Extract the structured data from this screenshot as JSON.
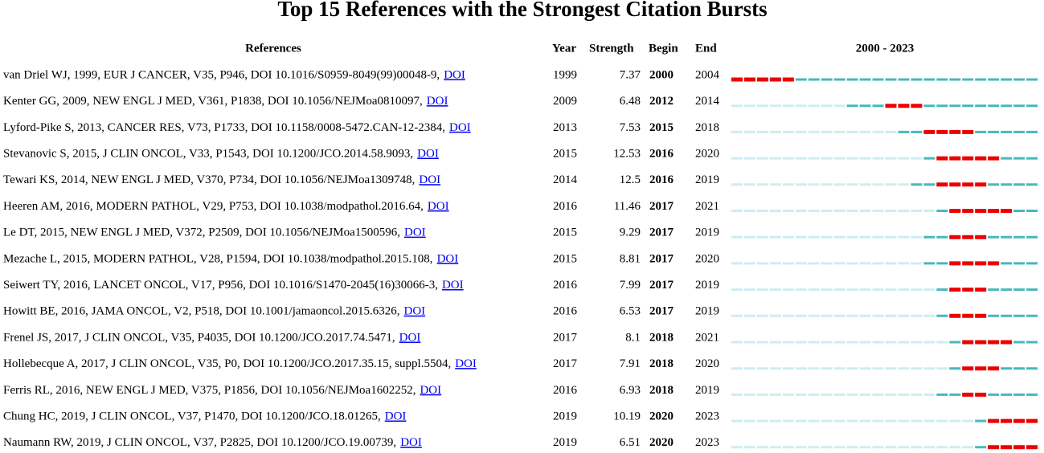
{
  "title": "Top 15 References with the Strongest Citation Bursts",
  "columns": [
    "References",
    "Year",
    "Strength",
    "Begin",
    "End"
  ],
  "timeline": {
    "label": "2000 - 2023",
    "range": [
      2000,
      2023
    ]
  },
  "rows": [
    {
      "reference": "van Driel WJ, 1999, EUR J CANCER, V35, P946, DOI 10.1016/S0959-8049(99)00048-9,",
      "link": "DOI",
      "year": 1999,
      "strength": 7.37,
      "begin": 2000,
      "end": 2004
    },
    {
      "reference": "Kenter GG, 2009, NEW ENGL J MED, V361, P1838, DOI 10.1056/NEJMoa0810097,",
      "link": "DOI",
      "year": 2009,
      "strength": 6.48,
      "begin": 2012,
      "end": 2014
    },
    {
      "reference": "Lyford-Pike S, 2013, CANCER RES, V73, P1733, DOI 10.1158/0008-5472.CAN-12-2384,",
      "link": "DOI",
      "year": 2013,
      "strength": 7.53,
      "begin": 2015,
      "end": 2018
    },
    {
      "reference": "Stevanovic S, 2015, J CLIN ONCOL, V33, P1543, DOI 10.1200/JCO.2014.58.9093,",
      "link": "DOI",
      "year": 2015,
      "strength": 12.53,
      "begin": 2016,
      "end": 2020
    },
    {
      "reference": "Tewari KS, 2014, NEW ENGL J MED, V370, P734, DOI 10.1056/NEJMoa1309748,",
      "link": "DOI",
      "year": 2014,
      "strength": 12.5,
      "begin": 2016,
      "end": 2019
    },
    {
      "reference": "Heeren AM, 2016, MODERN PATHOL, V29, P753, DOI 10.1038/modpathol.2016.64,",
      "link": "DOI",
      "year": 2016,
      "strength": 11.46,
      "begin": 2017,
      "end": 2021
    },
    {
      "reference": "Le DT, 2015, NEW ENGL J MED, V372, P2509, DOI 10.1056/NEJMoa1500596,",
      "link": "DOI",
      "year": 2015,
      "strength": 9.29,
      "begin": 2017,
      "end": 2019
    },
    {
      "reference": "Mezache L, 2015, MODERN PATHOL, V28, P1594, DOI 10.1038/modpathol.2015.108,",
      "link": "DOI",
      "year": 2015,
      "strength": 8.81,
      "begin": 2017,
      "end": 2020
    },
    {
      "reference": "Seiwert TY, 2016, LANCET ONCOL, V17, P956, DOI 10.1016/S1470-2045(16)30066-3,",
      "link": "DOI",
      "year": 2016,
      "strength": 7.99,
      "begin": 2017,
      "end": 2019
    },
    {
      "reference": "Howitt BE, 2016, JAMA ONCOL, V2, P518, DOI 10.1001/jamaoncol.2015.6326,",
      "link": "DOI",
      "year": 2016,
      "strength": 6.53,
      "begin": 2017,
      "end": 2019
    },
    {
      "reference": "Frenel JS, 2017, J CLIN ONCOL, V35, P4035, DOI 10.1200/JCO.2017.74.5471,",
      "link": "DOI",
      "year": 2017,
      "strength": 8.1,
      "begin": 2018,
      "end": 2021
    },
    {
      "reference": "Hollebecque A, 2017, J CLIN ONCOL, V35, P0, DOI 10.1200/JCO.2017.35.15, suppl.5504,",
      "link": "DOI",
      "year": 2017,
      "strength": 7.91,
      "begin": 2018,
      "end": 2020
    },
    {
      "reference": "Ferris RL, 2016, NEW ENGL J MED, V375, P1856, DOI 10.1056/NEJMoa1602252,",
      "link": "DOI",
      "year": 2016,
      "strength": 6.93,
      "begin": 2018,
      "end": 2019
    },
    {
      "reference": "Chung HC, 2019, J CLIN ONCOL, V37, P1470, DOI 10.1200/JCO.18.01265,",
      "link": "DOI",
      "year": 2019,
      "strength": 10.19,
      "begin": 2020,
      "end": 2023
    },
    {
      "reference": "Naumann RW, 2019, J CLIN ONCOL, V37, P2825, DOI 10.1200/JCO.19.00739,",
      "link": "DOI",
      "year": 2019,
      "strength": 6.51,
      "begin": 2020,
      "end": 2023
    }
  ]
}
